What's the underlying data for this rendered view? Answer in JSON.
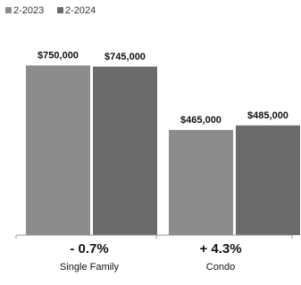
{
  "chart_data": {
    "type": "bar",
    "categories": [
      "Single Family",
      "Condo"
    ],
    "changes": [
      "- 0.7%",
      "+ 4.3%"
    ],
    "series": [
      {
        "name": "2-2023",
        "color": "#8c8c8c",
        "values": [
          750000,
          465000
        ],
        "labels": [
          "$750,000",
          "$465,000"
        ]
      },
      {
        "name": "2-2024",
        "color": "#6b6b6b",
        "values": [
          745000,
          485000
        ],
        "labels": [
          "$745,000",
          "$485,000"
        ]
      }
    ],
    "ylim": [
      0,
      800000
    ],
    "grid": false,
    "legend": "top-left"
  }
}
